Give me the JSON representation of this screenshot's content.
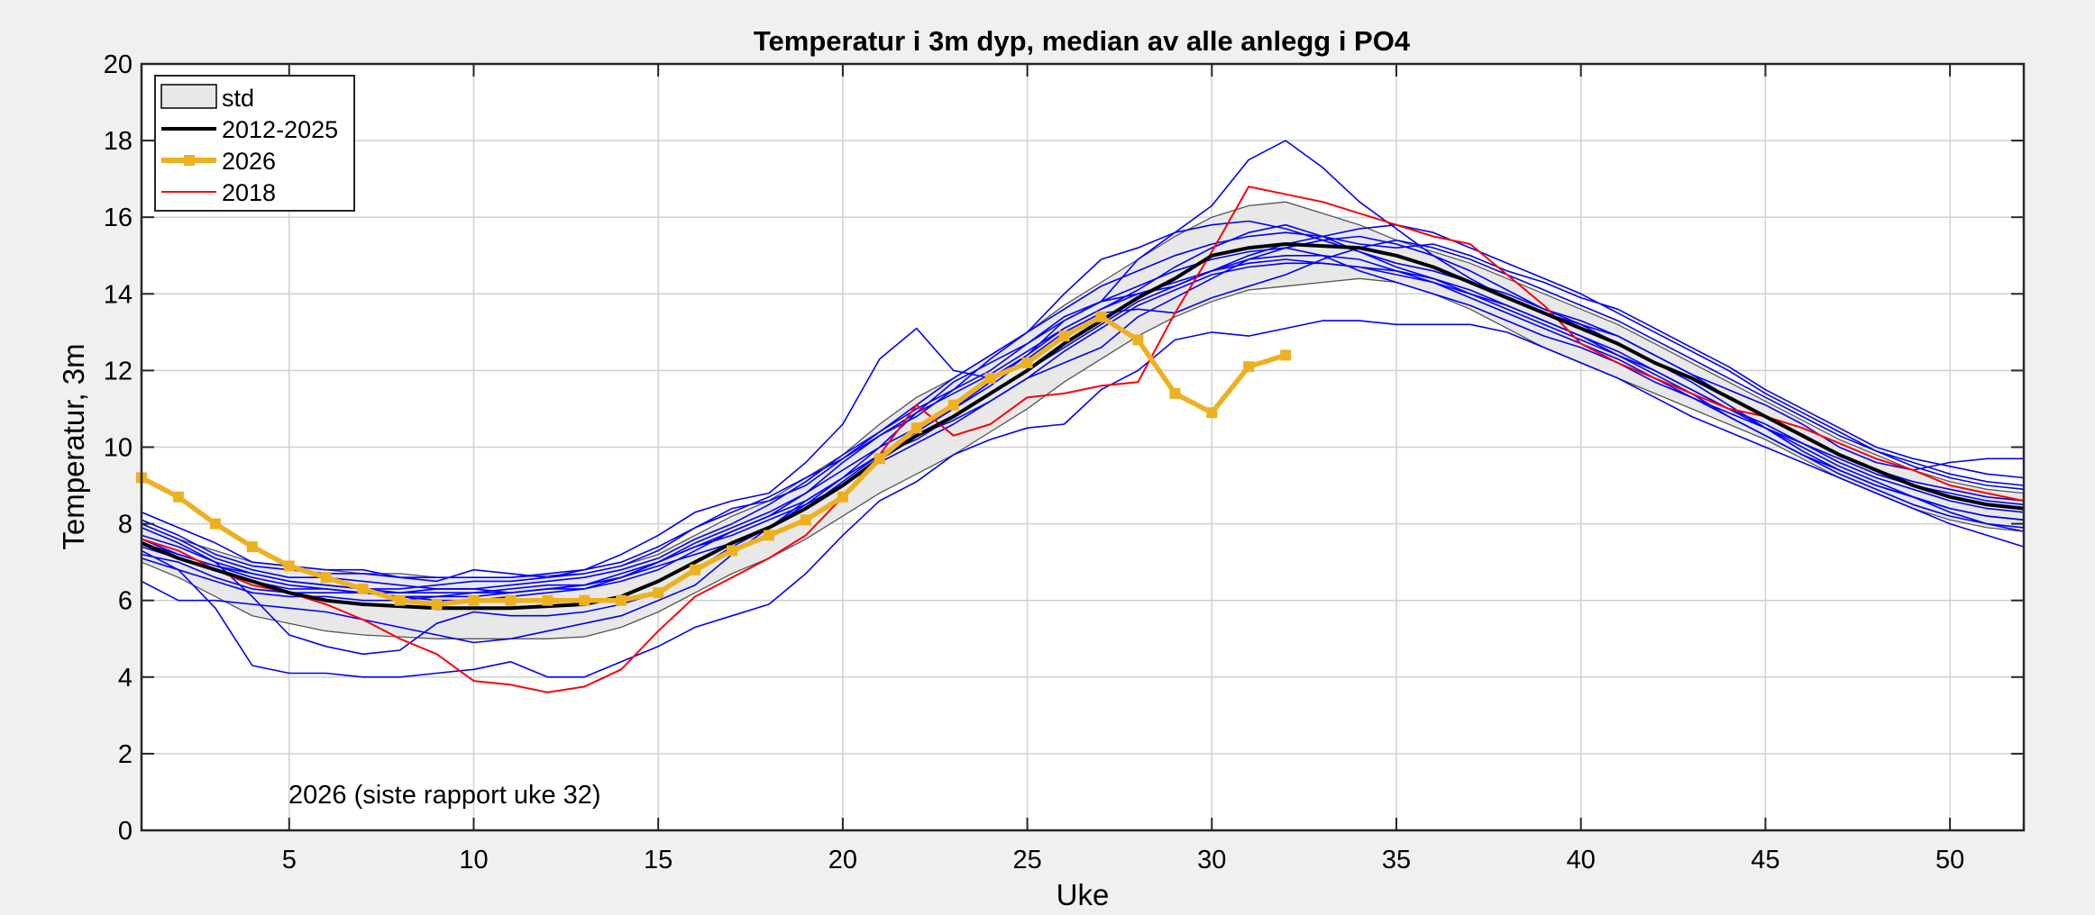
{
  "chart_data": {
    "type": "line",
    "title": "Temperatur i 3m dyp, median av alle anlegg i PO4",
    "xlabel": "Uke",
    "ylabel": "Temperatur, 3m",
    "xlim": [
      1,
      52
    ],
    "ylim": [
      0,
      20
    ],
    "xticks": [
      5,
      10,
      15,
      20,
      25,
      30,
      35,
      40,
      45,
      50
    ],
    "yticks": [
      0,
      2,
      4,
      6,
      8,
      10,
      12,
      14,
      16,
      18,
      20
    ],
    "grid": true,
    "legend_position": "top-left",
    "annotation": "2026 (siste rapport uke 32)",
    "colors": {
      "median": "#000000",
      "current": "#edb120",
      "highlight": "#ff0000",
      "years": "#0000ff",
      "std_fill": "#e8e8e8",
      "background": "#f0f0f0"
    },
    "std_band": {
      "name": "std",
      "x": [
        1,
        2,
        3,
        4,
        5,
        6,
        7,
        8,
        9,
        10,
        11,
        12,
        13,
        14,
        15,
        16,
        17,
        18,
        19,
        20,
        21,
        22,
        23,
        24,
        25,
        26,
        27,
        28,
        29,
        30,
        31,
        32,
        33,
        34,
        35,
        36,
        37,
        38,
        39,
        40,
        41,
        42,
        43,
        44,
        45,
        46,
        47,
        48,
        49,
        50,
        51,
        52
      ],
      "lower": [
        7.0,
        6.6,
        6.1,
        5.6,
        5.4,
        5.2,
        5.1,
        5.05,
        5.0,
        5.0,
        5.0,
        5.0,
        5.05,
        5.3,
        5.7,
        6.2,
        6.7,
        7.1,
        7.6,
        8.2,
        8.8,
        9.3,
        9.8,
        10.4,
        11.0,
        11.7,
        12.3,
        12.9,
        13.4,
        13.8,
        14.1,
        14.2,
        14.3,
        14.4,
        14.3,
        14.0,
        13.6,
        13.1,
        12.6,
        12.2,
        11.8,
        11.4,
        11.0,
        10.6,
        10.2,
        9.7,
        9.2,
        8.8,
        8.4,
        8.1,
        7.9,
        7.8
      ],
      "upper": [
        8.0,
        7.6,
        7.3,
        7.0,
        6.9,
        6.8,
        6.7,
        6.7,
        6.6,
        6.6,
        6.6,
        6.65,
        6.7,
        6.9,
        7.2,
        7.7,
        8.2,
        8.6,
        9.2,
        9.8,
        10.6,
        11.3,
        11.8,
        12.4,
        13.0,
        13.7,
        14.3,
        14.9,
        15.5,
        16.0,
        16.3,
        16.4,
        16.1,
        15.8,
        15.4,
        15.1,
        14.8,
        14.4,
        14.0,
        13.6,
        13.2,
        12.7,
        12.2,
        11.7,
        11.2,
        10.7,
        10.2,
        9.8,
        9.4,
        9.1,
        8.9,
        8.8
      ]
    },
    "series": [
      {
        "name": "2012-2025",
        "color": "#000000",
        "x": [
          1,
          2,
          3,
          4,
          5,
          6,
          7,
          8,
          9,
          10,
          11,
          12,
          13,
          14,
          15,
          16,
          17,
          18,
          19,
          20,
          21,
          22,
          23,
          24,
          25,
          26,
          27,
          28,
          29,
          30,
          31,
          32,
          33,
          34,
          35,
          36,
          37,
          38,
          39,
          40,
          41,
          42,
          43,
          44,
          45,
          46,
          47,
          48,
          49,
          50,
          51,
          52
        ],
        "values": [
          7.5,
          7.1,
          6.8,
          6.5,
          6.2,
          6.0,
          5.9,
          5.85,
          5.8,
          5.8,
          5.8,
          5.85,
          5.9,
          6.1,
          6.5,
          7.0,
          7.5,
          7.9,
          8.4,
          9.0,
          9.7,
          10.3,
          10.8,
          11.4,
          12.0,
          12.7,
          13.3,
          13.9,
          14.4,
          15.0,
          15.2,
          15.3,
          15.25,
          15.2,
          15.0,
          14.7,
          14.3,
          13.9,
          13.5,
          13.1,
          12.7,
          12.2,
          11.8,
          11.3,
          10.8,
          10.3,
          9.8,
          9.4,
          9.0,
          8.7,
          8.5,
          8.4
        ]
      },
      {
        "name": "2026",
        "color": "#edb120",
        "x": [
          1,
          2,
          3,
          4,
          5,
          6,
          7,
          8,
          9,
          10,
          11,
          12,
          13,
          14,
          15,
          16,
          17,
          18,
          19,
          20,
          21,
          22,
          23,
          24,
          25,
          26,
          27,
          28,
          29,
          30,
          31,
          32
        ],
        "values": [
          9.2,
          8.7,
          8.0,
          7.4,
          6.9,
          6.6,
          6.3,
          6.0,
          5.9,
          6.0,
          6.0,
          6.0,
          6.0,
          6.0,
          6.2,
          6.8,
          7.3,
          7.7,
          8.1,
          8.7,
          9.7,
          10.5,
          11.1,
          11.8,
          12.2,
          12.9,
          13.4,
          12.8,
          11.4,
          10.9,
          12.1,
          12.4
        ]
      },
      {
        "name": "2018",
        "color": "#ff0000",
        "x": [
          1,
          2,
          3,
          4,
          5,
          6,
          7,
          8,
          9,
          10,
          11,
          12,
          13,
          14,
          15,
          16,
          17,
          18,
          19,
          20,
          21,
          22,
          23,
          24,
          25,
          26,
          27,
          28,
          29,
          30,
          31,
          32,
          33,
          34,
          35,
          36,
          37,
          38,
          39,
          40,
          41,
          42,
          43,
          44,
          45,
          46,
          47,
          48,
          49,
          50,
          51,
          52
        ],
        "values": [
          7.6,
          7.3,
          6.8,
          6.4,
          6.2,
          5.9,
          5.5,
          5.0,
          4.6,
          3.9,
          3.8,
          3.6,
          3.75,
          4.2,
          5.2,
          6.1,
          6.6,
          7.1,
          7.7,
          8.7,
          9.8,
          11.1,
          10.3,
          10.6,
          11.3,
          11.4,
          11.6,
          11.7,
          13.5,
          15.1,
          16.8,
          16.6,
          16.4,
          16.1,
          15.8,
          15.5,
          15.3,
          14.5,
          13.7,
          12.7,
          12.2,
          11.8,
          11.4,
          11.0,
          10.8,
          10.5,
          10.1,
          9.7,
          9.4,
          9.0,
          8.8,
          8.6
        ]
      }
    ],
    "years": [
      {
        "values": [
          8.3,
          7.9,
          7.5,
          7.0,
          6.9,
          6.8,
          6.8,
          6.6,
          6.5,
          6.8,
          6.7,
          6.6,
          6.8,
          7.2,
          7.7,
          8.3,
          8.6,
          8.8,
          9.6,
          10.6,
          12.3,
          13.1,
          12.0,
          11.8,
          12.4,
          13.3,
          13.8,
          14.9,
          15.6,
          16.3,
          17.5,
          18.0,
          17.3,
          16.4,
          15.7,
          15.0,
          14.4,
          13.9,
          13.5,
          13.2,
          12.9,
          12.4,
          11.9,
          11.5,
          11.1,
          10.6,
          10.0,
          9.6,
          9.4,
          9.6,
          9.7,
          9.7
        ]
      },
      {
        "values": [
          6.5,
          6.0,
          6.0,
          5.9,
          5.8,
          5.7,
          5.5,
          5.3,
          5.1,
          4.9,
          5.0,
          5.2,
          5.4,
          5.6,
          6.0,
          6.4,
          7.2,
          7.9,
          8.5,
          9.2,
          10.0,
          10.9,
          11.7,
          12.2,
          12.7,
          13.3,
          13.8,
          14.2,
          14.6,
          14.9,
          15.1,
          15.2,
          15.0,
          14.6,
          14.3,
          14.0,
          13.7,
          13.3,
          12.9,
          12.6,
          12.2,
          11.7,
          11.3,
          10.9,
          10.5,
          10.1,
          9.7,
          9.3,
          9.0,
          8.8,
          8.6,
          8.5
        ]
      },
      {
        "values": [
          7.3,
          6.8,
          5.8,
          4.3,
          4.1,
          4.1,
          4.0,
          4.0,
          4.1,
          4.2,
          4.4,
          4.0,
          4.0,
          4.4,
          4.8,
          5.3,
          5.6,
          5.9,
          6.7,
          7.7,
          8.6,
          9.1,
          9.8,
          10.2,
          10.5,
          10.6,
          11.5,
          12.0,
          12.8,
          13.0,
          12.9,
          13.1,
          13.3,
          13.3,
          13.2,
          13.2,
          13.2,
          13.0,
          12.6,
          12.2,
          11.8,
          11.3,
          10.8,
          10.4,
          10.0,
          9.6,
          9.2,
          8.8,
          8.4,
          8.0,
          7.7,
          7.4
        ]
      },
      {
        "values": [
          7.9,
          7.5,
          7.0,
          6.1,
          5.1,
          4.8,
          4.6,
          4.7,
          5.4,
          5.7,
          5.6,
          5.6,
          5.7,
          5.9,
          6.2,
          6.8,
          7.4,
          7.9,
          8.6,
          9.2,
          9.8,
          10.3,
          10.7,
          11.2,
          11.8,
          12.2,
          12.6,
          13.4,
          13.9,
          14.4,
          14.9,
          15.2,
          15.4,
          15.5,
          15.3,
          15.0,
          14.6,
          14.1,
          13.6,
          13.2,
          12.7,
          12.2,
          11.7,
          11.1,
          10.5,
          9.9,
          9.4,
          9.0,
          8.7,
          8.3,
          8.0,
          7.8
        ]
      },
      {
        "values": [
          7.2,
          7.0,
          6.6,
          6.3,
          6.2,
          6.2,
          6.2,
          6.2,
          6.3,
          6.3,
          6.2,
          6.3,
          6.4,
          6.6,
          7.0,
          7.4,
          7.8,
          8.2,
          8.8,
          9.6,
          10.3,
          10.8,
          11.5,
          12.3,
          13.0,
          14.0,
          14.9,
          15.2,
          15.6,
          15.8,
          15.9,
          15.7,
          15.4,
          15.1,
          14.7,
          14.4,
          14.0,
          13.7,
          13.3,
          12.9,
          12.4,
          11.9,
          11.4,
          10.8,
          10.3,
          9.8,
          9.4,
          9.0,
          8.7,
          8.4,
          8.2,
          8.1
        ]
      },
      {
        "values": [
          7.6,
          7.2,
          6.9,
          6.7,
          6.5,
          6.4,
          6.3,
          6.3,
          6.4,
          6.5,
          6.5,
          6.6,
          6.7,
          6.9,
          7.3,
          7.9,
          8.4,
          8.6,
          9.0,
          9.7,
          10.4,
          11.1,
          11.8,
          12.4,
          13.0,
          13.6,
          14.2,
          14.6,
          15.0,
          15.3,
          15.5,
          15.6,
          15.5,
          15.3,
          15.2,
          15.3,
          15.0,
          14.6,
          14.3,
          13.9,
          13.6,
          13.1,
          12.6,
          12.1,
          11.5,
          11.0,
          10.5,
          10.0,
          9.7,
          9.5,
          9.3,
          9.2
        ]
      },
      {
        "values": [
          8.0,
          7.6,
          7.1,
          6.8,
          6.6,
          6.6,
          6.5,
          6.4,
          6.3,
          6.3,
          6.4,
          6.5,
          6.6,
          6.8,
          7.1,
          7.6,
          8.0,
          8.5,
          9.1,
          9.8,
          10.4,
          11.0,
          11.5,
          12.0,
          12.7,
          13.4,
          13.8,
          14.0,
          14.2,
          14.6,
          15.0,
          15.3,
          15.5,
          15.7,
          15.8,
          15.6,
          15.2,
          14.8,
          14.4,
          14.0,
          13.5,
          13.0,
          12.5,
          12.0,
          11.4,
          10.9,
          10.4,
          9.9,
          9.6,
          9.3,
          9.1,
          9.0
        ]
      },
      {
        "values": [
          7.7,
          7.4,
          7.0,
          6.7,
          6.5,
          6.4,
          6.3,
          6.2,
          6.2,
          6.2,
          6.3,
          6.4,
          6.4,
          6.7,
          7.0,
          7.5,
          7.9,
          8.3,
          8.8,
          9.4,
          10.0,
          10.5,
          11.0,
          11.6,
          12.3,
          13.0,
          13.5,
          13.6,
          13.5,
          13.9,
          14.2,
          14.5,
          14.9,
          15.2,
          15.4,
          15.2,
          14.9,
          14.5,
          14.1,
          13.7,
          13.3,
          12.8,
          12.3,
          11.8,
          11.3,
          10.8,
          10.3,
          9.9,
          9.5,
          9.2,
          9.0,
          8.9
        ]
      },
      {
        "values": [
          7.4,
          7.1,
          6.8,
          6.5,
          6.3,
          6.3,
          6.2,
          6.1,
          6.1,
          6.1,
          6.2,
          6.3,
          6.3,
          6.5,
          6.8,
          7.3,
          7.8,
          8.2,
          8.6,
          9.2,
          9.8,
          10.2,
          10.8,
          11.4,
          12.0,
          12.6,
          13.2,
          13.8,
          14.2,
          14.6,
          14.8,
          14.9,
          14.8,
          14.7,
          14.5,
          14.3,
          14.0,
          13.6,
          13.2,
          12.8,
          12.4,
          12.0,
          11.5,
          11.0,
          10.6,
          10.1,
          9.6,
          9.2,
          8.9,
          8.6,
          8.4,
          8.3
        ]
      },
      {
        "values": [
          7.1,
          6.8,
          6.5,
          6.2,
          6.1,
          6.1,
          6.0,
          6.0,
          6.1,
          6.2,
          6.2,
          6.3,
          6.4,
          6.6,
          6.9,
          7.2,
          7.5,
          7.9,
          8.4,
          9.1,
          9.8,
          10.4,
          11.0,
          11.7,
          12.4,
          13.1,
          13.6,
          14.0,
          14.3,
          14.6,
          14.9,
          15.0,
          15.0,
          14.9,
          14.6,
          14.3,
          13.9,
          13.5,
          13.1,
          12.7,
          12.3,
          11.8,
          11.3,
          10.8,
          10.3,
          9.8,
          9.3,
          8.9,
          8.5,
          8.2,
          8.0,
          7.9
        ]
      },
      {
        "values": [
          8.1,
          7.7,
          7.2,
          6.9,
          6.8,
          6.7,
          6.7,
          6.6,
          6.6,
          6.6,
          6.6,
          6.7,
          6.8,
          7.0,
          7.4,
          7.9,
          8.3,
          8.7,
          9.2,
          9.7,
          10.3,
          10.9,
          11.4,
          11.9,
          12.5,
          13.1,
          13.6,
          14.1,
          14.7,
          15.2,
          15.6,
          15.8,
          15.5,
          15.1,
          14.8,
          14.6,
          14.3,
          14.0,
          13.6,
          13.3,
          12.9,
          12.4,
          11.9,
          11.3,
          10.8,
          10.3,
          9.8,
          9.4,
          9.1,
          8.9,
          8.7,
          8.6
        ]
      },
      {
        "values": [
          7.5,
          7.2,
          6.9,
          6.6,
          6.4,
          6.3,
          6.2,
          6.1,
          6.0,
          6.0,
          6.1,
          6.2,
          6.3,
          6.6,
          7.0,
          7.4,
          7.7,
          8.1,
          8.5,
          9.0,
          9.6,
          10.1,
          10.6,
          11.2,
          11.8,
          12.5,
          13.1,
          13.7,
          14.1,
          14.5,
          14.7,
          14.8,
          14.8,
          14.7,
          14.6,
          14.4,
          14.1,
          13.7,
          13.3,
          12.9,
          12.5,
          12.0,
          11.5,
          11.0,
          10.5,
          10.0,
          9.5,
          9.1,
          8.7,
          8.4,
          8.2,
          8.1
        ]
      }
    ]
  }
}
